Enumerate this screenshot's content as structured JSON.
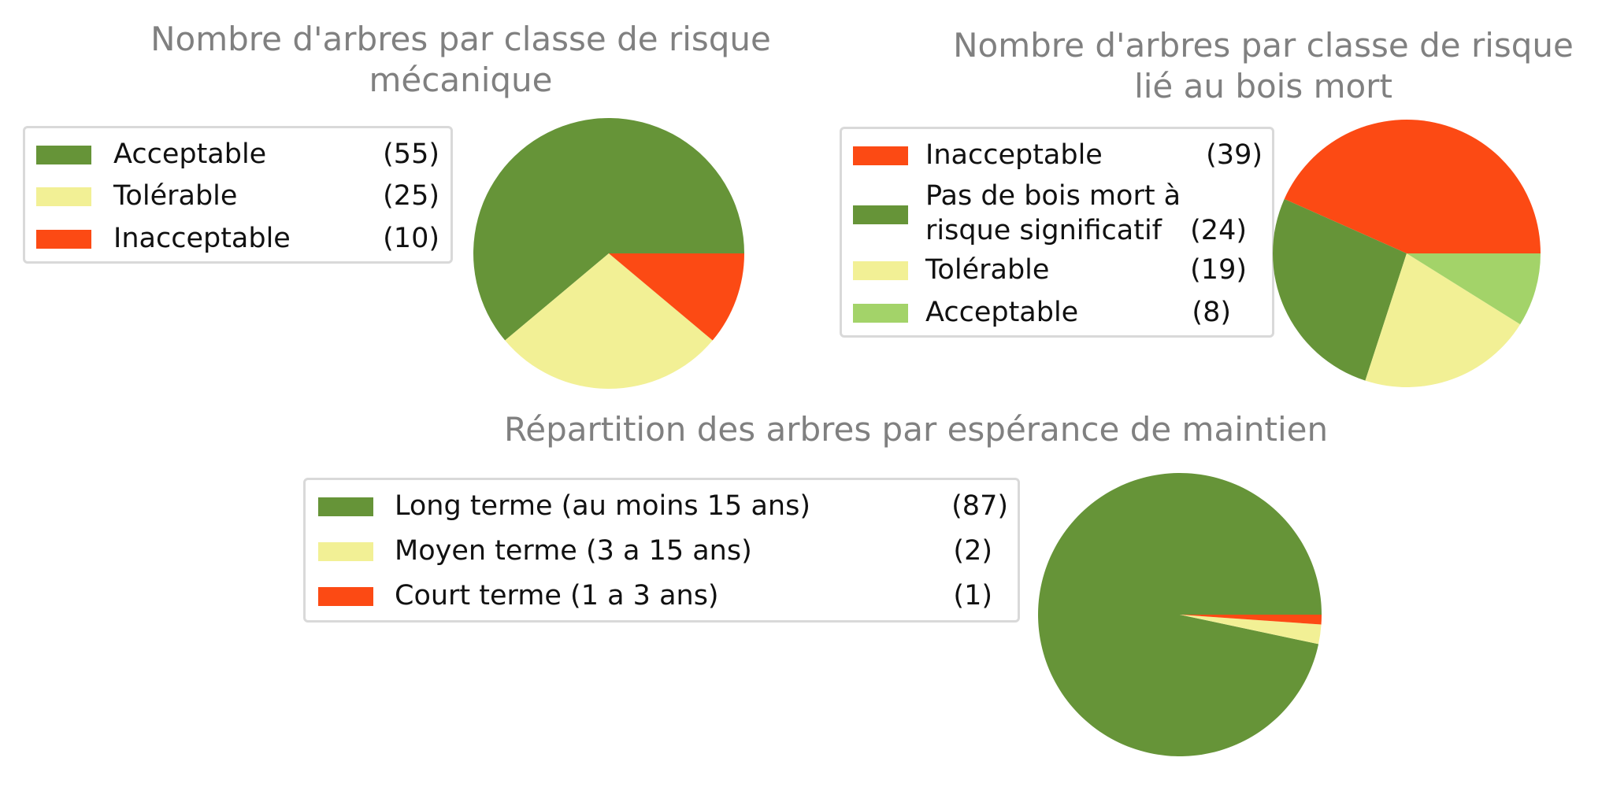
{
  "chart_data": [
    {
      "type": "pie",
      "title": "Nombre d'arbres par classe de risque mécanique",
      "title_lines": [
        "Nombre d'arbres par classe de risque",
        "mécanique"
      ],
      "legend_placement": "left",
      "slices": [
        {
          "label": "Acceptable",
          "label_lines": [
            "Acceptable"
          ],
          "count_label": "(55)",
          "value": 55,
          "color": "#669438"
        },
        {
          "label": "Tolérable",
          "label_lines": [
            "Tolérable"
          ],
          "count_label": "(25)",
          "value": 25,
          "color": "#f2f095"
        },
        {
          "label": "Inacceptable",
          "label_lines": [
            "Inacceptable"
          ],
          "count_label": "(10)",
          "value": 10,
          "color": "#fc4a14"
        }
      ]
    },
    {
      "type": "pie",
      "title": "Nombre d'arbres par classe de risque lié au bois mort",
      "title_lines": [
        "Nombre d'arbres par classe de risque",
        "lié au bois mort"
      ],
      "legend_placement": "left",
      "slices": [
        {
          "label": "Inacceptable",
          "label_lines": [
            "Inacceptable"
          ],
          "count_label": "(39)",
          "value": 39,
          "color": "#fc4a14"
        },
        {
          "label": "Pas de bois mort à risque significatif",
          "label_lines": [
            "Pas de bois mort à",
            "risque significatif"
          ],
          "count_label": "(24)",
          "value": 24,
          "color": "#669438"
        },
        {
          "label": "Tolérable",
          "label_lines": [
            "Tolérable"
          ],
          "count_label": "(19)",
          "value": 19,
          "color": "#f2f095"
        },
        {
          "label": "Acceptable",
          "label_lines": [
            "Acceptable"
          ],
          "count_label": "(8)",
          "value": 8,
          "color": "#a3d369"
        }
      ]
    },
    {
      "type": "pie",
      "title": "Répartition des arbres par espérance de maintien",
      "title_lines": [
        "Répartition des arbres par espérance de maintien"
      ],
      "legend_placement": "left",
      "slices": [
        {
          "label": "Long terme (au moins 15 ans)",
          "label_lines": [
            "Long terme (au moins 15 ans)"
          ],
          "count_label": "(87)",
          "value": 87,
          "color": "#669438"
        },
        {
          "label": "Moyen terme (3 a 15 ans)",
          "label_lines": [
            "Moyen terme (3 a 15 ans)"
          ],
          "count_label": "(2)",
          "value": 2,
          "color": "#f2f095"
        },
        {
          "label": "Court terme (1 a 3 ans)",
          "label_lines": [
            "Court terme (1 a 3 ans)"
          ],
          "count_label": "(1)",
          "value": 1,
          "color": "#fc4a14"
        }
      ]
    }
  ]
}
